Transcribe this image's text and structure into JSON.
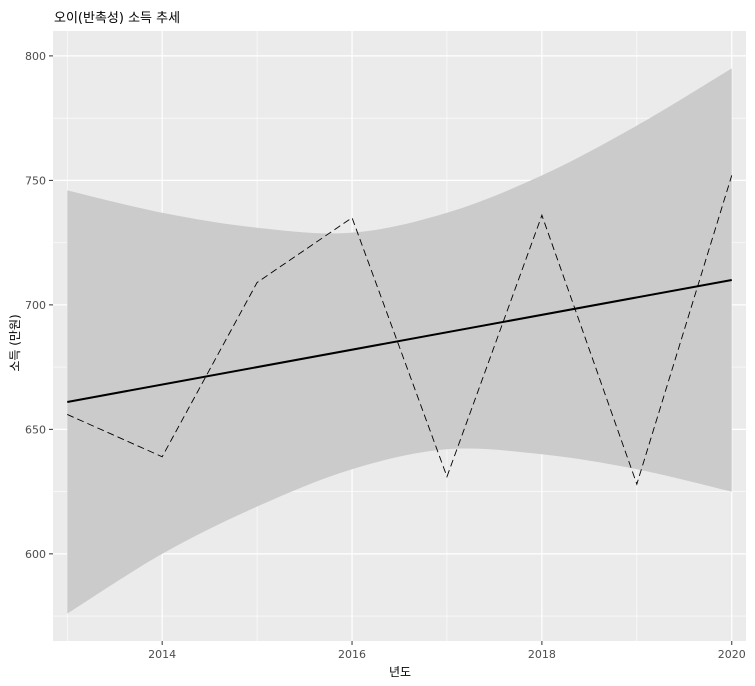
{
  "chart_data": {
    "type": "line",
    "title": "오이(반촉성) 소득 추세",
    "xlabel": "년도",
    "ylabel": "소득 (만원)",
    "xlim": [
      2012.85,
      2020.15
    ],
    "ylim": [
      565,
      810
    ],
    "xticks": [
      2014,
      2016,
      2018,
      2020
    ],
    "yticks": [
      600,
      650,
      700,
      750,
      800
    ],
    "x_tick_labels": [
      "2014",
      "2016",
      "2018",
      "2020"
    ],
    "y_tick_labels": [
      "600",
      "650",
      "700",
      "750",
      "800"
    ],
    "grid": true,
    "legend": "none",
    "series": [
      {
        "style": "dashed",
        "x": [
          2013,
          2014,
          2015,
          2016,
          2017,
          2018,
          2019,
          2020
        ],
        "values": [
          656,
          639,
          709,
          735,
          631,
          736,
          628,
          752
        ]
      }
    ],
    "trend": {
      "method": "linear",
      "x": [
        2013,
        2020
      ],
      "values": [
        661,
        710
      ]
    },
    "confidence_band": {
      "x": [
        2013,
        2014,
        2015,
        2016,
        2017,
        2018,
        2019,
        2020
      ],
      "lower": [
        576,
        600,
        619,
        634,
        642,
        640,
        634,
        625
      ],
      "upper": [
        746,
        737,
        731,
        729,
        737,
        752,
        772,
        795
      ]
    },
    "colors": {
      "panel": "#ebebeb",
      "grid": "#ffffff",
      "band": "#cbcbcb",
      "line": "#000000",
      "text": "#4d4d4d"
    }
  }
}
